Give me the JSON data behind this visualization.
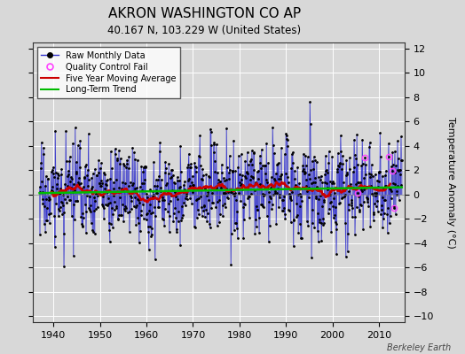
{
  "title": "AKRON WASHINGTON CO AP",
  "subtitle": "40.167 N, 103.229 W (United States)",
  "ylabel": "Temperature Anomaly (°C)",
  "watermark": "Berkeley Earth",
  "year_start": 1937,
  "year_end": 2014,
  "ylim": [
    -10.5,
    12.5
  ],
  "yticks": [
    -10,
    -8,
    -6,
    -4,
    -2,
    0,
    2,
    4,
    6,
    8,
    10,
    12
  ],
  "xticks": [
    1940,
    1950,
    1960,
    1970,
    1980,
    1990,
    2000,
    2010
  ],
  "bg_color": "#d8d8d8",
  "plot_bg_color": "#d8d8d8",
  "line_color": "#3333cc",
  "dot_color": "#000000",
  "mavg_color": "#cc0000",
  "trend_color": "#00bb00",
  "qc_fail_color": "#ff44ff",
  "grid_color": "#ffffff",
  "title_fontsize": 11,
  "subtitle_fontsize": 8.5,
  "tick_fontsize": 8,
  "ylabel_fontsize": 8,
  "watermark_fontsize": 7,
  "legend_fontsize": 7
}
